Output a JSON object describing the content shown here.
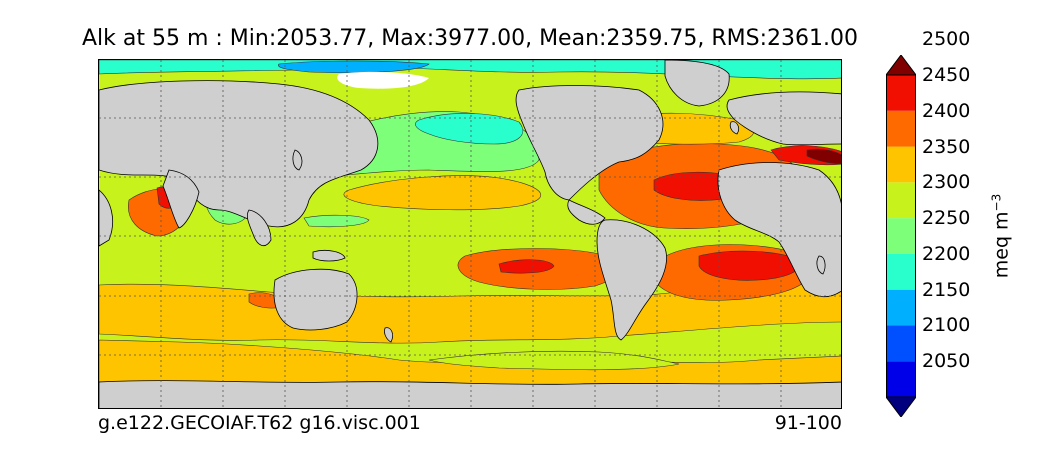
{
  "title": "Alk at 55 m : Min:2053.77, Max:3977.00, Mean:2359.75, RMS:2361.00",
  "footer": {
    "case_name": "g.e122.GECOIAF.T62 g16.visc.001",
    "years": "91-100"
  },
  "colorbar": {
    "unit_base": "meq m",
    "unit_exp": "−3",
    "ticks": [
      "2050",
      "2100",
      "2150",
      "2200",
      "2250",
      "2300",
      "2350",
      "2400",
      "2450",
      "2500"
    ],
    "levels": [
      {
        "range": "<2025",
        "color": "#00007f"
      },
      {
        "range": "2025-2075",
        "color": "#0000e8"
      },
      {
        "range": "2075-2125",
        "color": "#0050ff"
      },
      {
        "range": "2125-2175",
        "color": "#00b0ff"
      },
      {
        "range": "2175-2225",
        "color": "#29ffcd"
      },
      {
        "range": "2225-2275",
        "color": "#7dff7a"
      },
      {
        "range": "2275-2325",
        "color": "#c8f21c"
      },
      {
        "range": "2325-2375",
        "color": "#ffc400"
      },
      {
        "range": "2375-2425",
        "color": "#ff6a00"
      },
      {
        "range": "2425-2475",
        "color": "#f00f00"
      },
      {
        "range": ">2475",
        "color": "#800000"
      }
    ]
  },
  "map": {
    "land_color": "#cfcfcf",
    "ice_color": "#ffffff",
    "gridlines": "dotted"
  }
}
